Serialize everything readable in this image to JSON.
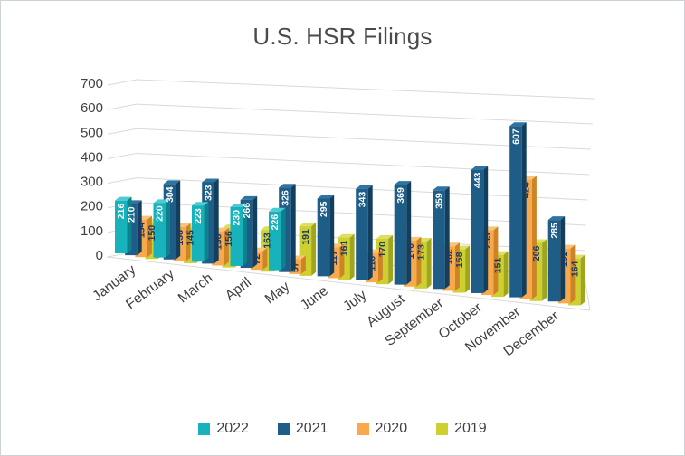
{
  "title": "U.S. HSR Filings",
  "chart_data": {
    "type": "bar",
    "subtype": "3d-clustered-column",
    "title": "U.S. HSR Filings",
    "categories": [
      "January",
      "February",
      "March",
      "April",
      "May",
      "June",
      "July",
      "August",
      "September",
      "October",
      "November",
      "December"
    ],
    "series": [
      {
        "name": "2022",
        "color": "#18b2bd",
        "side_color": "#0e828c",
        "top_color": "#4ccbd3",
        "label_color": "#ffffff",
        "values": [
          216,
          220,
          223,
          230,
          226,
          null,
          null,
          null,
          null,
          null,
          null,
          null
        ]
      },
      {
        "name": "2021",
        "color": "#1d5d87",
        "side_color": "#133f5e",
        "top_color": "#2e74a3",
        "label_color": "#ffffff",
        "values": [
          210,
          304,
          323,
          266,
          326,
          295,
          343,
          369,
          359,
          443,
          607,
          285
        ]
      },
      {
        "name": "2020",
        "color": "#f9a94b",
        "side_color": "#cd8426",
        "top_color": "#fbc379",
        "label_color": "#1f3a60",
        "values": [
          154,
          138,
          136,
          72,
          57,
          117,
          110,
          170,
          162,
          233,
          424,
          192
        ]
      },
      {
        "name": "2019",
        "color": "#cdd02f",
        "side_color": "#a0a51e",
        "top_color": "#dde05e",
        "label_color": "#1f3a60",
        "values": [
          150,
          145,
          156,
          163,
          191,
          161,
          170,
          173,
          158,
          151,
          206,
          164
        ]
      }
    ],
    "yticks": [
      0,
      100,
      200,
      300,
      400,
      500,
      600,
      700
    ],
    "ylim": [
      0,
      700
    ],
    "xlabel": "",
    "ylabel": "",
    "grid": true,
    "legend_position": "bottom",
    "axis_text_color": "#404040",
    "title_color": "#4a4a4a",
    "gridline_color": "#d9d9d9"
  }
}
